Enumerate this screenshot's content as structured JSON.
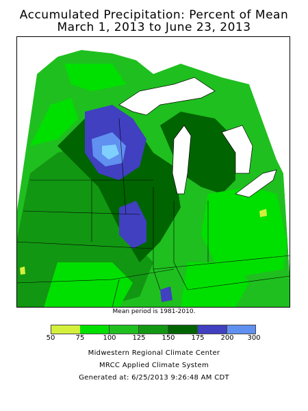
{
  "title": {
    "line1": "Accumulated Precipitation: Percent of Mean",
    "line2": "March 1, 2013 to June 23, 2013"
  },
  "mean_period": "Mean period is 1981-2010.",
  "legend": {
    "labels": [
      "50",
      "75",
      "100",
      "125",
      "150",
      "175",
      "200",
      "300"
    ],
    "colors": [
      "#d4f03c",
      "#00e000",
      "#1fbf1f",
      "#129712",
      "#006400",
      "#4040c0",
      "#6090f0",
      "#80d0ff"
    ]
  },
  "footer": {
    "line1": "Midwestern Regional Climate Center",
    "line2": "MRCC Applied Climate System",
    "line3": "Generated at: 6/25/2013 9:26:48 AM CDT"
  },
  "colors": {
    "lake": "#ffffff",
    "border": "#000000"
  }
}
